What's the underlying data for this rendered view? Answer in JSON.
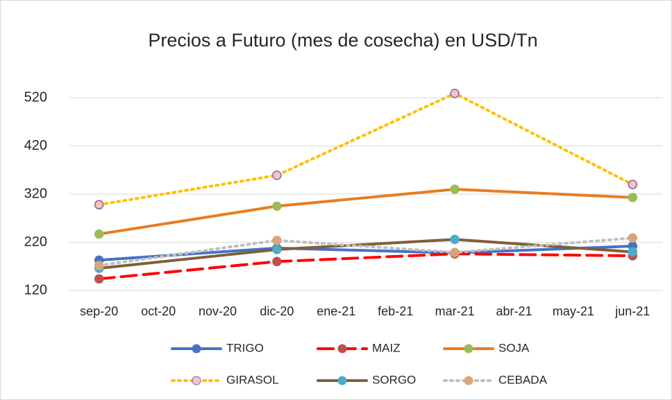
{
  "chart_data": {
    "type": "line",
    "title": "Precios a Futuro (mes de cosecha) en USD/Tn",
    "categories": [
      "sep-20",
      "oct-20",
      "nov-20",
      "dic-20",
      "ene-21",
      "feb-21",
      "mar-21",
      "abr-21",
      "may-21",
      "jun-21"
    ],
    "ylim": [
      120,
      520
    ],
    "yticks": [
      120,
      220,
      320,
      420,
      520
    ],
    "grid": true,
    "legend": "bottom",
    "span_gaps": true,
    "series": [
      {
        "name": "TRIGO",
        "color": "#4472c4",
        "marker_color": "#4472c4",
        "dash": "solid",
        "values": [
          183,
          null,
          null,
          208,
          null,
          null,
          198,
          null,
          null,
          212
        ]
      },
      {
        "name": "MAIZ",
        "color": "#ff0000",
        "marker_color": "#c0504d",
        "dash": "dashed",
        "values": [
          144,
          null,
          null,
          180,
          null,
          null,
          196,
          null,
          null,
          192
        ]
      },
      {
        "name": "SOJA",
        "color": "#e97c1f",
        "marker_color": "#9bbb59",
        "dash": "solid",
        "values": [
          237,
          null,
          null,
          295,
          null,
          null,
          330,
          null,
          null,
          313
        ]
      },
      {
        "name": "GIRASOL",
        "color": "#ffc000",
        "marker_color": "#f2c4c4",
        "dash": "dotted",
        "values": [
          298,
          null,
          null,
          359,
          null,
          null,
          529,
          null,
          null,
          340
        ]
      },
      {
        "name": "SORGO",
        "color": "#7f5f3a",
        "marker_color": "#4bacc6",
        "dash": "solid",
        "values": [
          166,
          null,
          null,
          205,
          null,
          null,
          226,
          null,
          null,
          200
        ]
      },
      {
        "name": "CEBADA",
        "color": "#bfbfbf",
        "marker_color": "#d9a57a",
        "dash": "dotted",
        "values": [
          172,
          null,
          null,
          224,
          null,
          null,
          199,
          null,
          null,
          229
        ]
      }
    ]
  }
}
